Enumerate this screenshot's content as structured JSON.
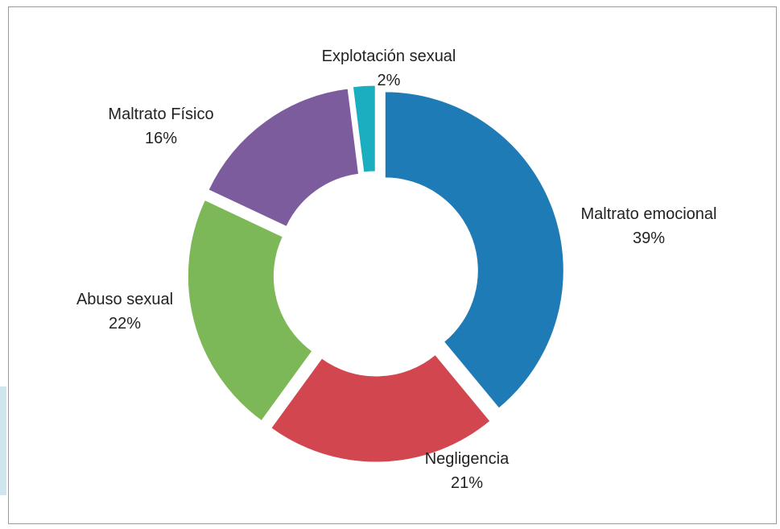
{
  "chart_data": {
    "type": "donut",
    "categories": [
      "Maltrato emocional",
      "Negligencia",
      "Abuso sexual",
      "Maltrato Físico",
      "Explotación sexual"
    ],
    "values": [
      39,
      21,
      22,
      16,
      2
    ],
    "value_labels": [
      "39%",
      "21%",
      "22%",
      "16%",
      "2%"
    ],
    "colors": [
      "#1f7bb6",
      "#d2474f",
      "#7db858",
      "#7d5c9e",
      "#1aaec0"
    ]
  }
}
